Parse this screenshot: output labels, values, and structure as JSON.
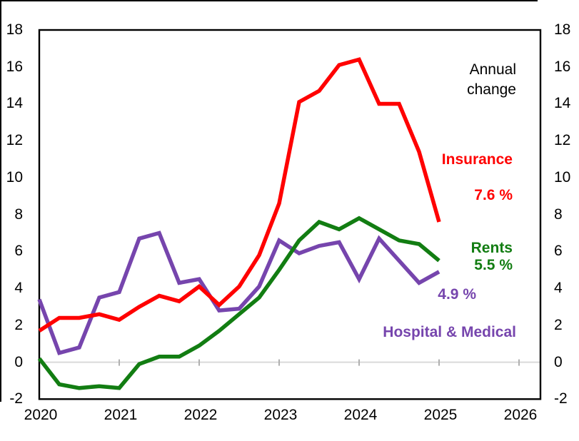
{
  "chart_data": {
    "type": "line",
    "title": "",
    "frequency": "quarterly",
    "categories": [
      "2020Q1",
      "2020Q2",
      "2020Q3",
      "2020Q4",
      "2021Q1",
      "2021Q2",
      "2021Q3",
      "2021Q4",
      "2022Q1",
      "2022Q2",
      "2022Q3",
      "2022Q4",
      "2023Q1",
      "2023Q2",
      "2023Q3",
      "2023Q4",
      "2024Q1",
      "2024Q2",
      "2024Q3",
      "2024Q4",
      "2025Q1"
    ],
    "series": [
      {
        "name": "Insurance",
        "color": "#ff0000",
        "end_label": "7.6 %",
        "end_value": 7.6,
        "values": [
          1.7,
          2.4,
          2.4,
          2.6,
          2.3,
          3.0,
          3.6,
          3.3,
          4.1,
          3.1,
          4.1,
          5.8,
          8.6,
          14.1,
          14.7,
          16.1,
          16.4,
          14.0,
          14.0,
          11.4,
          7.6
        ]
      },
      {
        "name": "Rents",
        "color": "#127d12",
        "end_label": "5.5 %",
        "end_value": 5.5,
        "values": [
          0.2,
          -1.2,
          -1.4,
          -1.3,
          -1.4,
          -0.1,
          0.3,
          0.3,
          0.9,
          1.7,
          2.6,
          3.5,
          5.0,
          6.6,
          7.6,
          7.2,
          7.8,
          7.2,
          6.6,
          6.4,
          5.5
        ]
      },
      {
        "name": "Hospital & Medical",
        "color": "#7645ad",
        "end_label": "4.9 %",
        "end_value": 4.9,
        "values": [
          3.4,
          0.5,
          0.8,
          3.5,
          3.8,
          6.7,
          7.0,
          4.3,
          4.5,
          2.8,
          2.9,
          4.1,
          6.6,
          5.9,
          6.3,
          6.5,
          4.5,
          6.7,
          5.5,
          4.3,
          4.9
        ]
      }
    ],
    "x_tick_years": [
      2020,
      2021,
      2022,
      2023,
      2024,
      2025,
      2026
    ],
    "y_ticks": [
      18,
      16,
      14,
      12,
      10,
      8,
      6,
      4,
      2,
      0,
      -2
    ],
    "ylim": [
      -2,
      18
    ],
    "xlabel": "",
    "ylabel": "",
    "grid": "zero-line-only",
    "legend_position": "inline-labels-right",
    "colors": {
      "frame": "#000000",
      "zero_gridline": "#d9d9d9",
      "zero_tick": "#b0b0b0",
      "axis_text": "#000000",
      "annotation_text": "#000000",
      "background": "#ffffff"
    }
  },
  "annotations": {
    "annual_change": "Annual change"
  }
}
